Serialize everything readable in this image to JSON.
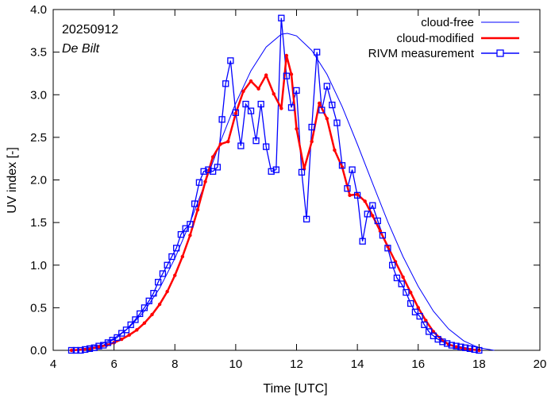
{
  "chart_data": {
    "type": "line",
    "title": "",
    "xlabel": "Time  [UTC]",
    "ylabel": "UV index  [-]",
    "xlim": [
      4,
      20
    ],
    "ylim": [
      0,
      4
    ],
    "xticks": [
      4,
      6,
      8,
      10,
      12,
      14,
      16,
      18,
      20
    ],
    "yticks": [
      0.0,
      0.5,
      1.0,
      1.5,
      2.0,
      2.5,
      3.0,
      3.5,
      4.0
    ],
    "xtick_labels": [
      "4",
      "6",
      "8",
      "10",
      "12",
      "14",
      "16",
      "18",
      "20"
    ],
    "ytick_labels": [
      "0.0",
      "0.5",
      "1.0",
      "1.5",
      "2.0",
      "2.5",
      "3.0",
      "3.5",
      "4.0"
    ],
    "annotations": [
      {
        "text": "20250912",
        "style": "normal"
      },
      {
        "text": "De Bilt",
        "style": "italic"
      }
    ],
    "legend_position": "top-right",
    "series": [
      {
        "name": "cloud-free",
        "color": "#0000ff",
        "style": "thin-line",
        "x": [
          4.6,
          5.0,
          5.5,
          6.0,
          6.5,
          7.0,
          7.5,
          8.0,
          8.5,
          9.0,
          9.5,
          10.0,
          10.5,
          11.0,
          11.5,
          11.7,
          12.0,
          12.5,
          13.0,
          13.5,
          14.0,
          14.5,
          15.0,
          15.5,
          16.0,
          16.5,
          17.0,
          17.5,
          18.0,
          18.5
        ],
        "y": [
          0.0,
          0.02,
          0.06,
          0.14,
          0.27,
          0.46,
          0.73,
          1.08,
          1.5,
          1.97,
          2.45,
          2.9,
          3.28,
          3.56,
          3.71,
          3.72,
          3.69,
          3.52,
          3.24,
          2.86,
          2.42,
          1.96,
          1.51,
          1.1,
          0.75,
          0.46,
          0.25,
          0.11,
          0.03,
          0.0
        ]
      },
      {
        "name": "cloud-modified",
        "color": "#ff0000",
        "style": "thick-line-dots",
        "x": [
          4.6,
          5.0,
          5.25,
          5.5,
          5.75,
          6.0,
          6.25,
          6.5,
          6.75,
          7.0,
          7.25,
          7.5,
          7.75,
          8.0,
          8.25,
          8.5,
          8.75,
          9.0,
          9.25,
          9.5,
          9.75,
          10.0,
          10.25,
          10.5,
          10.75,
          11.0,
          11.25,
          11.5,
          11.67,
          11.83,
          12.0,
          12.25,
          12.5,
          12.75,
          13.0,
          13.25,
          13.5,
          13.75,
          14.0,
          14.25,
          14.5,
          14.75,
          15.0,
          15.25,
          15.5,
          15.75,
          16.0,
          16.25,
          16.5,
          16.75,
          17.0,
          17.25,
          17.5,
          17.75,
          18.0
        ],
        "y": [
          0.0,
          0.01,
          0.02,
          0.04,
          0.06,
          0.09,
          0.13,
          0.18,
          0.24,
          0.32,
          0.42,
          0.54,
          0.69,
          0.88,
          1.1,
          1.35,
          1.65,
          1.98,
          2.27,
          2.42,
          2.45,
          2.78,
          3.04,
          3.16,
          3.07,
          3.23,
          3.01,
          2.84,
          3.46,
          3.24,
          2.6,
          2.13,
          2.45,
          2.9,
          2.72,
          2.35,
          2.15,
          1.82,
          1.83,
          1.75,
          1.58,
          1.4,
          1.22,
          1.04,
          0.86,
          0.68,
          0.5,
          0.35,
          0.22,
          0.13,
          0.07,
          0.04,
          0.02,
          0.01,
          0.0
        ]
      },
      {
        "name": "RIVM measurement",
        "color": "#0000ff",
        "style": "line-squares",
        "x": [
          4.6,
          4.75,
          4.9,
          5.05,
          5.2,
          5.35,
          5.5,
          5.65,
          5.8,
          5.95,
          6.1,
          6.25,
          6.4,
          6.55,
          6.7,
          6.85,
          7.0,
          7.15,
          7.3,
          7.45,
          7.6,
          7.75,
          7.9,
          8.05,
          8.2,
          8.35,
          8.5,
          8.65,
          8.8,
          8.95,
          9.1,
          9.25,
          9.4,
          9.55,
          9.67,
          9.83,
          10.0,
          10.17,
          10.33,
          10.5,
          10.67,
          10.83,
          11.0,
          11.17,
          11.33,
          11.5,
          11.67,
          11.83,
          12.0,
          12.17,
          12.33,
          12.5,
          12.67,
          12.83,
          13.0,
          13.17,
          13.33,
          13.5,
          13.67,
          13.83,
          14.0,
          14.17,
          14.33,
          14.5,
          14.67,
          14.83,
          15.0,
          15.15,
          15.3,
          15.45,
          15.6,
          15.75,
          15.9,
          16.05,
          16.2,
          16.35,
          16.5,
          16.65,
          16.8,
          16.95,
          17.1,
          17.25,
          17.4,
          17.55,
          17.7,
          17.85,
          18.0
        ],
        "y": [
          0.0,
          0.0,
          0.0,
          0.01,
          0.02,
          0.03,
          0.05,
          0.06,
          0.09,
          0.12,
          0.15,
          0.2,
          0.24,
          0.3,
          0.36,
          0.43,
          0.5,
          0.58,
          0.67,
          0.8,
          0.9,
          1.0,
          1.1,
          1.2,
          1.36,
          1.43,
          1.48,
          1.72,
          1.97,
          2.1,
          2.12,
          2.1,
          2.15,
          2.71,
          3.13,
          3.4,
          2.79,
          2.4,
          2.89,
          2.81,
          2.46,
          2.89,
          2.39,
          2.1,
          2.12,
          3.9,
          3.22,
          2.85,
          3.05,
          2.09,
          1.54,
          2.62,
          3.5,
          2.82,
          3.1,
          2.88,
          2.67,
          2.17,
          1.9,
          2.12,
          1.82,
          1.28,
          1.6,
          1.7,
          1.52,
          1.35,
          1.2,
          1.0,
          0.85,
          0.78,
          0.68,
          0.55,
          0.45,
          0.4,
          0.3,
          0.22,
          0.17,
          0.13,
          0.1,
          0.08,
          0.06,
          0.05,
          0.04,
          0.03,
          0.02,
          0.01,
          0.0
        ]
      }
    ]
  }
}
